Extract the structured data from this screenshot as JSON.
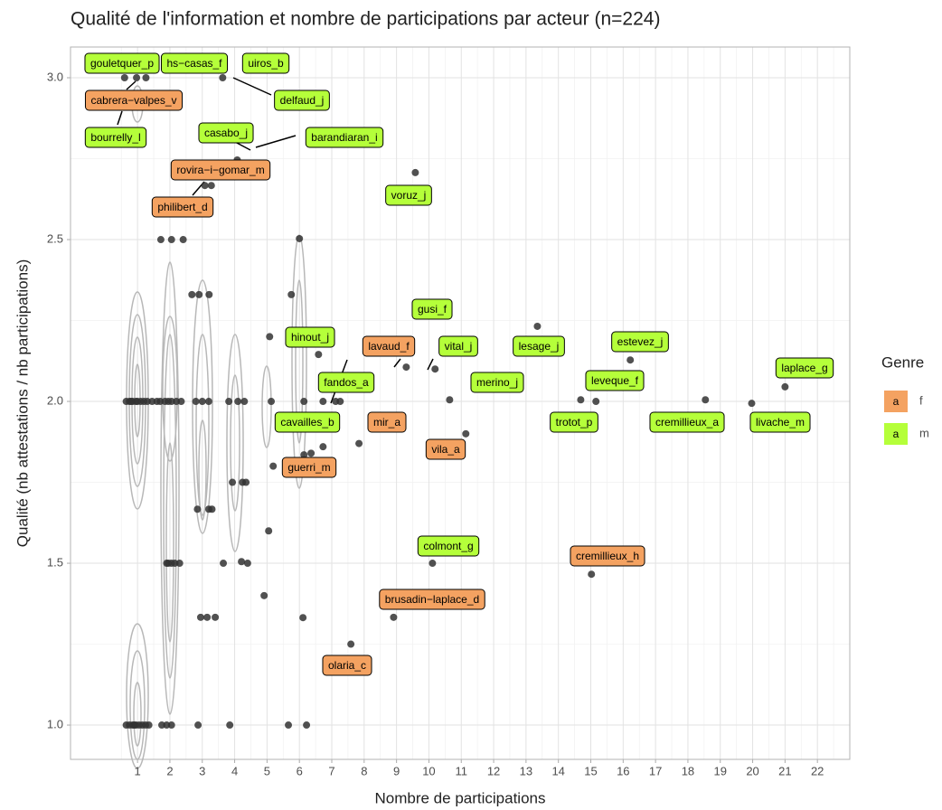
{
  "chart_data": {
    "type": "scatter",
    "title": "Qualité de l'information et nombre de participations par acteur (n=224)",
    "x_label": "Nombre de participations",
    "y_label": "Qualité (nb attestations / nb participations)",
    "xlim": [
      -1.07,
      23.0
    ],
    "ylim": [
      0.894,
      3.095
    ],
    "xticks": [
      1,
      2,
      3,
      4,
      5,
      6,
      7,
      8,
      9,
      10,
      11,
      12,
      13,
      14,
      15,
      16,
      17,
      18,
      19,
      20,
      21,
      22
    ],
    "yticks": [
      {
        "value": 1,
        "label": "1.0"
      },
      {
        "value": 1.5,
        "label": "1.5"
      },
      {
        "value": 2,
        "label": "2.0"
      },
      {
        "value": 2.5,
        "label": "2.5"
      },
      {
        "value": 3,
        "label": "3.0"
      }
    ],
    "xminorticks": [
      0.5,
      1.5,
      2.5,
      3.5,
      4.5,
      5.5,
      6.5,
      7.5,
      8.5,
      9.5,
      10.5,
      11.5,
      12.5,
      13.5,
      14.5,
      15.5,
      16.5,
      17.5,
      18.5,
      19.5,
      20.5,
      21.5,
      22.5
    ],
    "yminorticks": [
      1.25,
      1.75,
      2.25,
      2.75
    ],
    "grid": true,
    "point_color": "#333333",
    "x": [
      0.65,
      0.75,
      0.85,
      0.95,
      1.0,
      1.1,
      1.2,
      1.3,
      1.45,
      0.8,
      0.65,
      0.75,
      0.85,
      0.95,
      1.05,
      1.15,
      1.25,
      1.35,
      0.9,
      0.6,
      0.97,
      1.26,
      1.6,
      1.7,
      1.85,
      1.95,
      2.05,
      2.2,
      2.35,
      1.9,
      1.95,
      2.05,
      2.15,
      2.3,
      1.75,
      1.9,
      2.05,
      1.72,
      2.05,
      2.41,
      2.68,
      2.9,
      3.21,
      3.08,
      3.28,
      2.8,
      3.0,
      3.2,
      2.85,
      3.2,
      3.3,
      2.95,
      3.15,
      3.4,
      2.87,
      3.63,
      3.82,
      4.1,
      4.3,
      3.93,
      4.24,
      4.35,
      4.21,
      4.4,
      4.08,
      3.85,
      3.65,
      4.91,
      5.05,
      5.19,
      5.13,
      5.08,
      6.0,
      5.75,
      6.14,
      6.14,
      6.36,
      6.11,
      5.66,
      6.22,
      6.59,
      6.73,
      7.12,
      7.26,
      6.73,
      7.59,
      7.84,
      9.3,
      8.91,
      9.58,
      10.19,
      10.11,
      10.64,
      11.14,
      13.35,
      14.69,
      15.16,
      15.02,
      16.22,
      18.54,
      19.97,
      21.0
    ],
    "values": [
      2,
      2,
      2,
      2,
      2,
      2,
      2,
      2,
      2,
      2,
      1,
      1,
      1,
      1,
      1,
      1,
      1,
      1,
      1,
      3,
      3,
      3,
      2,
      2,
      2,
      2,
      2,
      2,
      2,
      1.5,
      1.5,
      1.5,
      1.5,
      1.5,
      1,
      1,
      1,
      2.5,
      2.5,
      2.5,
      2.33,
      2.33,
      2.33,
      2.667,
      2.667,
      2,
      2,
      2,
      1.667,
      1.667,
      1.667,
      1.333,
      1.333,
      1.333,
      1,
      3,
      2,
      2,
      2,
      1.75,
      1.75,
      1.75,
      1.505,
      1.5,
      2.746,
      1,
      1.5,
      1.4,
      1.6,
      1.8,
      2.0,
      2.2,
      2.503,
      2.33,
      2.0,
      1.835,
      1.84,
      1.332,
      1.0,
      1.0,
      2.145,
      2.0,
      2.0,
      2.0,
      1.86,
      1.25,
      1.87,
      2.106,
      1.333,
      2.707,
      2.1,
      1.5,
      2.005,
      1.9,
      2.232,
      2.005,
      2.0,
      1.466,
      2.128,
      2.005,
      1.994,
      2.045
    ],
    "legend_title": "Genre",
    "legend_key_text": "a",
    "genres": [
      {
        "name": "f",
        "color": "#f4a261"
      },
      {
        "name": "m",
        "color": "#b5ff3a"
      }
    ],
    "labels": [
      {
        "text": "uiros_b",
        "genre": 1
      },
      {
        "text": "gouletquer_p",
        "genre": 1
      },
      {
        "text": "hs−casas_f",
        "genre": 1
      },
      {
        "text": "delfaud_j",
        "genre": 1
      },
      {
        "text": "cabrera−valpes_v",
        "genre": 0
      },
      {
        "text": "bourrelly_l",
        "genre": 1
      },
      {
        "text": "casabo_j",
        "genre": 1
      },
      {
        "text": "barandiaran_i",
        "genre": 1
      },
      {
        "text": "rovira−i−gomar_m",
        "genre": 0
      },
      {
        "text": "philibert_d",
        "genre": 0
      },
      {
        "text": "voruz_j",
        "genre": 1
      },
      {
        "text": "gusi_f",
        "genre": 1
      },
      {
        "text": "hinout_j",
        "genre": 1
      },
      {
        "text": "lavaud_f",
        "genre": 0
      },
      {
        "text": "vital_j",
        "genre": 1
      },
      {
        "text": "lesage_j",
        "genre": 1
      },
      {
        "text": "estevez_j",
        "genre": 1
      },
      {
        "text": "laplace_g",
        "genre": 1
      },
      {
        "text": "fandos_a",
        "genre": 1
      },
      {
        "text": "merino_j",
        "genre": 1
      },
      {
        "text": "leveque_f",
        "genre": 1
      },
      {
        "text": "cavailles_b",
        "genre": 1
      },
      {
        "text": "mir_a",
        "genre": 0
      },
      {
        "text": "trotot_p",
        "genre": 1
      },
      {
        "text": "cremillieux_a",
        "genre": 1
      },
      {
        "text": "livache_m",
        "genre": 1
      },
      {
        "text": "vila_a",
        "genre": 0
      },
      {
        "text": "guerri_m",
        "genre": 0
      },
      {
        "text": "colmont_g",
        "genre": 1
      },
      {
        "text": "cremillieux_h",
        "genre": 0
      },
      {
        "text": "brusadin−laplace_d",
        "genre": 0
      },
      {
        "text": "olaria_c",
        "genre": 0
      }
    ]
  }
}
